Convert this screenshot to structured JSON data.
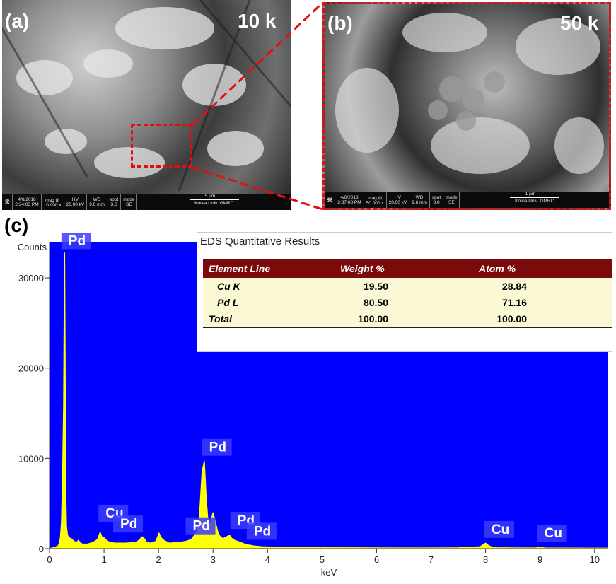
{
  "panel_a": {
    "label": "(a)",
    "magnification": "10 k",
    "infobar": {
      "date": "4/6/2018",
      "time": "2:34:03 PM",
      "mag_label": "mag ⊞",
      "mag_value": "10 000 x",
      "hv_label": "HV",
      "hv_value": "20.00 kV",
      "wd_label": "WD",
      "wd_value": "9.6 mm",
      "spot_label": "spot",
      "spot_value": "3.0",
      "mode_label": "mode",
      "mode_value": "SE",
      "scale_text": "5 μm",
      "org_text": "Korea Univ. GMRC"
    }
  },
  "panel_b": {
    "label": "(b)",
    "magnification": "50 k",
    "infobar": {
      "date": "4/6/2018",
      "time": "2:37:08 PM",
      "mag_label": "mag ⊞",
      "mag_value": "50 000 x",
      "hv_label": "HV",
      "hv_value": "20.00 kV",
      "wd_label": "WD",
      "wd_value": "9.6 mm",
      "spot_label": "spot",
      "spot_value": "3.0",
      "mode_label": "mode",
      "mode_value": "SE",
      "scale_text": "1 μm",
      "org_text": "Korea Univ. GMRC"
    }
  },
  "panel_c": {
    "label": "(c)",
    "table": {
      "title": "EDS Quantitative Results",
      "headers": [
        "Element Line",
        "Weight %",
        "Atom %"
      ],
      "rows": [
        [
          "Cu K",
          "19.50",
          "28.84"
        ],
        [
          "Pd L",
          "80.50",
          "71.16"
        ],
        [
          "Total",
          "100.00",
          "100.00"
        ]
      ]
    }
  },
  "colors": {
    "plot_bg": "#0000ff",
    "spectrum": "#ffff00",
    "callout_box": "#e01010",
    "table_header": "#7b0a0a",
    "table_body": "#fbf8d6"
  },
  "chart_data": {
    "type": "line",
    "xlabel": "keV",
    "ylabel": "Counts",
    "xlim": [
      0,
      10.25
    ],
    "ylim": [
      0,
      34000
    ],
    "x_ticks": [
      0,
      1,
      2,
      3,
      4,
      5,
      6,
      7,
      8,
      9,
      10
    ],
    "y_ticks": [
      0,
      10000,
      20000,
      30000
    ],
    "series": [
      {
        "x": [
          0.0,
          0.1,
          0.16,
          0.18,
          0.2,
          0.22,
          0.24,
          0.26,
          0.277,
          0.29,
          0.3,
          0.31,
          0.33,
          0.36,
          0.4,
          0.45,
          0.5,
          0.53,
          0.56,
          0.6,
          0.7,
          0.8,
          0.88,
          0.93,
          0.96,
          1.0,
          1.05,
          1.1,
          1.2,
          1.4,
          1.6,
          1.7,
          1.74,
          1.78,
          1.85,
          1.95,
          2.01,
          2.05,
          2.1,
          2.2,
          2.4,
          2.5,
          2.55,
          2.6,
          2.7,
          2.75,
          2.8,
          2.84,
          2.87,
          2.9,
          2.93,
          2.96,
          3.0,
          3.04,
          3.08,
          3.12,
          3.18,
          3.25,
          3.3,
          3.35,
          3.4,
          3.5,
          3.58,
          3.65,
          3.75,
          3.9,
          4.2,
          4.6,
          5.0,
          6.0,
          6.8,
          7.5,
          7.9,
          8.0,
          8.04,
          8.1,
          8.2,
          8.5,
          8.9,
          9.0,
          9.1,
          9.5,
          10.0,
          10.25
        ],
        "y": [
          0,
          150,
          300,
          600,
          1200,
          3000,
          8000,
          16000,
          32800,
          16000,
          6000,
          2500,
          1500,
          1200,
          1100,
          800,
          700,
          900,
          700,
          500,
          500,
          700,
          1000,
          1800,
          1300,
          1200,
          900,
          700,
          600,
          600,
          700,
          1300,
          1100,
          700,
          600,
          800,
          1700,
          1200,
          900,
          600,
          700,
          800,
          900,
          1000,
          1800,
          3500,
          8500,
          9700,
          6000,
          3500,
          2500,
          2900,
          4000,
          3000,
          2000,
          1400,
          1100,
          1300,
          1500,
          1100,
          900,
          700,
          500,
          400,
          300,
          200,
          150,
          120,
          100,
          80,
          70,
          90,
          200,
          600,
          400,
          200,
          100,
          80,
          70,
          120,
          70,
          60,
          50,
          50
        ]
      }
    ],
    "peak_labels": [
      {
        "text": "Pd",
        "x": 0.27,
        "y": 33500
      },
      {
        "text": "Cu",
        "x": 0.95,
        "y": 3300
      },
      {
        "text": "Pd",
        "x": 1.22,
        "y": 2100
      },
      {
        "text": "Pd",
        "x": 2.55,
        "y": 1900
      },
      {
        "text": "Pd",
        "x": 2.85,
        "y": 10600
      },
      {
        "text": "Pd",
        "x": 3.37,
        "y": 2500
      },
      {
        "text": "Pd",
        "x": 3.67,
        "y": 1300
      },
      {
        "text": "Cu",
        "x": 8.03,
        "y": 1500
      },
      {
        "text": "Cu",
        "x": 9.0,
        "y": 1100
      }
    ]
  }
}
